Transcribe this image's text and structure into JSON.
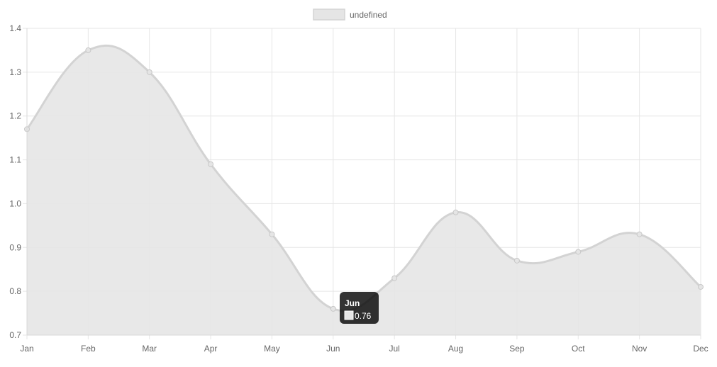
{
  "chart_data": {
    "type": "area",
    "categories": [
      "Jan",
      "Feb",
      "Mar",
      "Apr",
      "May",
      "Jun",
      "Jul",
      "Aug",
      "Sep",
      "Oct",
      "Nov",
      "Dec"
    ],
    "series": [
      {
        "name": "undefined",
        "values": [
          1.17,
          1.35,
          1.3,
          1.09,
          0.93,
          0.76,
          0.83,
          0.98,
          0.87,
          0.89,
          0.93,
          0.81
        ]
      }
    ],
    "ylim": [
      0.7,
      1.4
    ],
    "yticks": [
      "0.7",
      "0.8",
      "0.9",
      "1.0",
      "1.1",
      "1.2",
      "1.3",
      "1.4"
    ],
    "grid": true,
    "legend_position": "top-center",
    "fill_color": "#e5e5e5",
    "line_color": "#d3d3d3",
    "grid_color": "#e6e6e6",
    "tooltip": {
      "title": "Jun",
      "value": "0.76",
      "category_index": 5
    }
  }
}
